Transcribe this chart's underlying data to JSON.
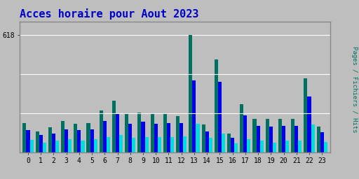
{
  "title": "Acces horaire pour Aout 2023",
  "hours": [
    0,
    1,
    2,
    3,
    4,
    5,
    6,
    7,
    8,
    9,
    10,
    11,
    12,
    13,
    14,
    15,
    16,
    17,
    18,
    19,
    20,
    21,
    22,
    23
  ],
  "pages": [
    155,
    110,
    130,
    165,
    150,
    155,
    220,
    270,
    200,
    210,
    200,
    200,
    190,
    618,
    145,
    490,
    100,
    255,
    175,
    175,
    175,
    175,
    390,
    135
  ],
  "fichiers": [
    115,
    90,
    100,
    120,
    115,
    120,
    165,
    200,
    150,
    160,
    150,
    155,
    155,
    380,
    110,
    370,
    75,
    195,
    140,
    135,
    140,
    140,
    295,
    105
  ],
  "hits": [
    65,
    50,
    60,
    70,
    62,
    68,
    80,
    90,
    75,
    80,
    78,
    80,
    85,
    150,
    75,
    100,
    45,
    70,
    62,
    52,
    62,
    60,
    145,
    55
  ],
  "color_pages": "#007060",
  "color_fichiers": "#0000ee",
  "color_hits": "#00dddd",
  "background_color": "#bebebe",
  "plot_bg_color": "#bebebe",
  "title_color": "#0000cc",
  "ytick_label": "618",
  "ylim_max": 690,
  "bar_width": 0.28,
  "title_fontsize": 11,
  "tick_fontsize": 7,
  "grid_color": "#aaaaaa",
  "border_color": "#888888"
}
